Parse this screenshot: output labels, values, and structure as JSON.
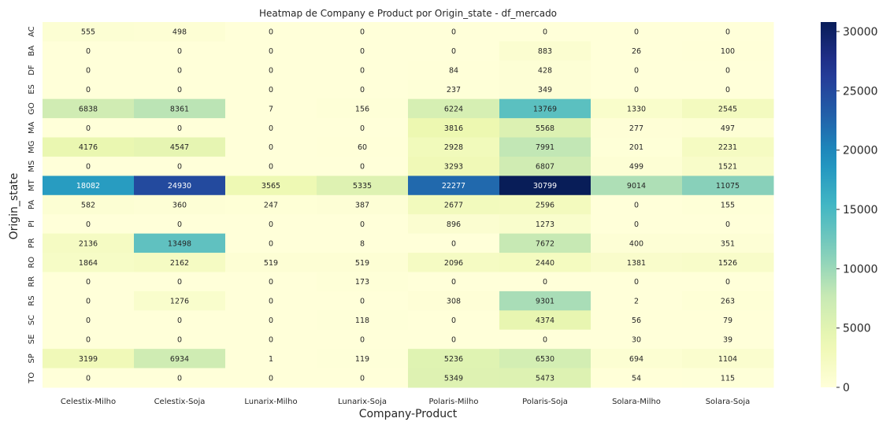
{
  "chart_data": {
    "type": "heatmap",
    "title": "Heatmap de Company e Product por Origin_state - df_mercado",
    "xlabel": "Company-Product",
    "ylabel": "Origin_state",
    "x_categories": [
      "Celestix-Milho",
      "Celestix-Soja",
      "Lunarix-Milho",
      "Lunarix-Soja",
      "Polaris-Milho",
      "Polaris-Soja",
      "Solara-Milho",
      "Solara-Soja"
    ],
    "y_categories": [
      "AC",
      "BA",
      "DF",
      "ES",
      "GO",
      "MA",
      "MG",
      "MS",
      "MT",
      "PA",
      "PI",
      "PR",
      "RO",
      "RR",
      "RS",
      "SC",
      "SE",
      "SP",
      "TO"
    ],
    "values": [
      [
        555,
        498,
        0,
        0,
        0,
        0,
        0,
        0
      ],
      [
        0,
        0,
        0,
        0,
        0,
        883,
        26,
        100
      ],
      [
        0,
        0,
        0,
        0,
        84,
        428,
        0,
        0
      ],
      [
        0,
        0,
        0,
        0,
        237,
        349,
        0,
        0
      ],
      [
        6838,
        8361,
        7,
        156,
        6224,
        13769,
        1330,
        2545
      ],
      [
        0,
        0,
        0,
        0,
        3816,
        5568,
        277,
        497
      ],
      [
        4176,
        4547,
        0,
        60,
        2928,
        7991,
        201,
        2231
      ],
      [
        0,
        0,
        0,
        0,
        3293,
        6807,
        499,
        1521
      ],
      [
        18082,
        24930,
        3565,
        5335,
        22277,
        30799,
        9014,
        11075
      ],
      [
        582,
        360,
        247,
        387,
        2677,
        2596,
        0,
        155
      ],
      [
        0,
        0,
        0,
        0,
        896,
        1273,
        0,
        0
      ],
      [
        2136,
        13498,
        0,
        8,
        0,
        7672,
        400,
        351
      ],
      [
        1864,
        2162,
        519,
        519,
        2096,
        2440,
        1381,
        1526
      ],
      [
        0,
        0,
        0,
        173,
        0,
        0,
        0,
        0
      ],
      [
        0,
        1276,
        0,
        0,
        308,
        9301,
        2,
        263
      ],
      [
        0,
        0,
        0,
        118,
        0,
        4374,
        56,
        79
      ],
      [
        0,
        0,
        0,
        0,
        0,
        0,
        30,
        39
      ],
      [
        3199,
        6934,
        1,
        119,
        5236,
        6530,
        694,
        1104
      ],
      [
        0,
        0,
        0,
        0,
        5349,
        5473,
        54,
        115
      ]
    ],
    "vmin": 0,
    "vmax": 30799,
    "colormap": "YlGnBu",
    "colorbar_ticks": [
      0,
      5000,
      10000,
      15000,
      20000,
      25000,
      30000
    ],
    "annotated": true,
    "grid": false
  }
}
